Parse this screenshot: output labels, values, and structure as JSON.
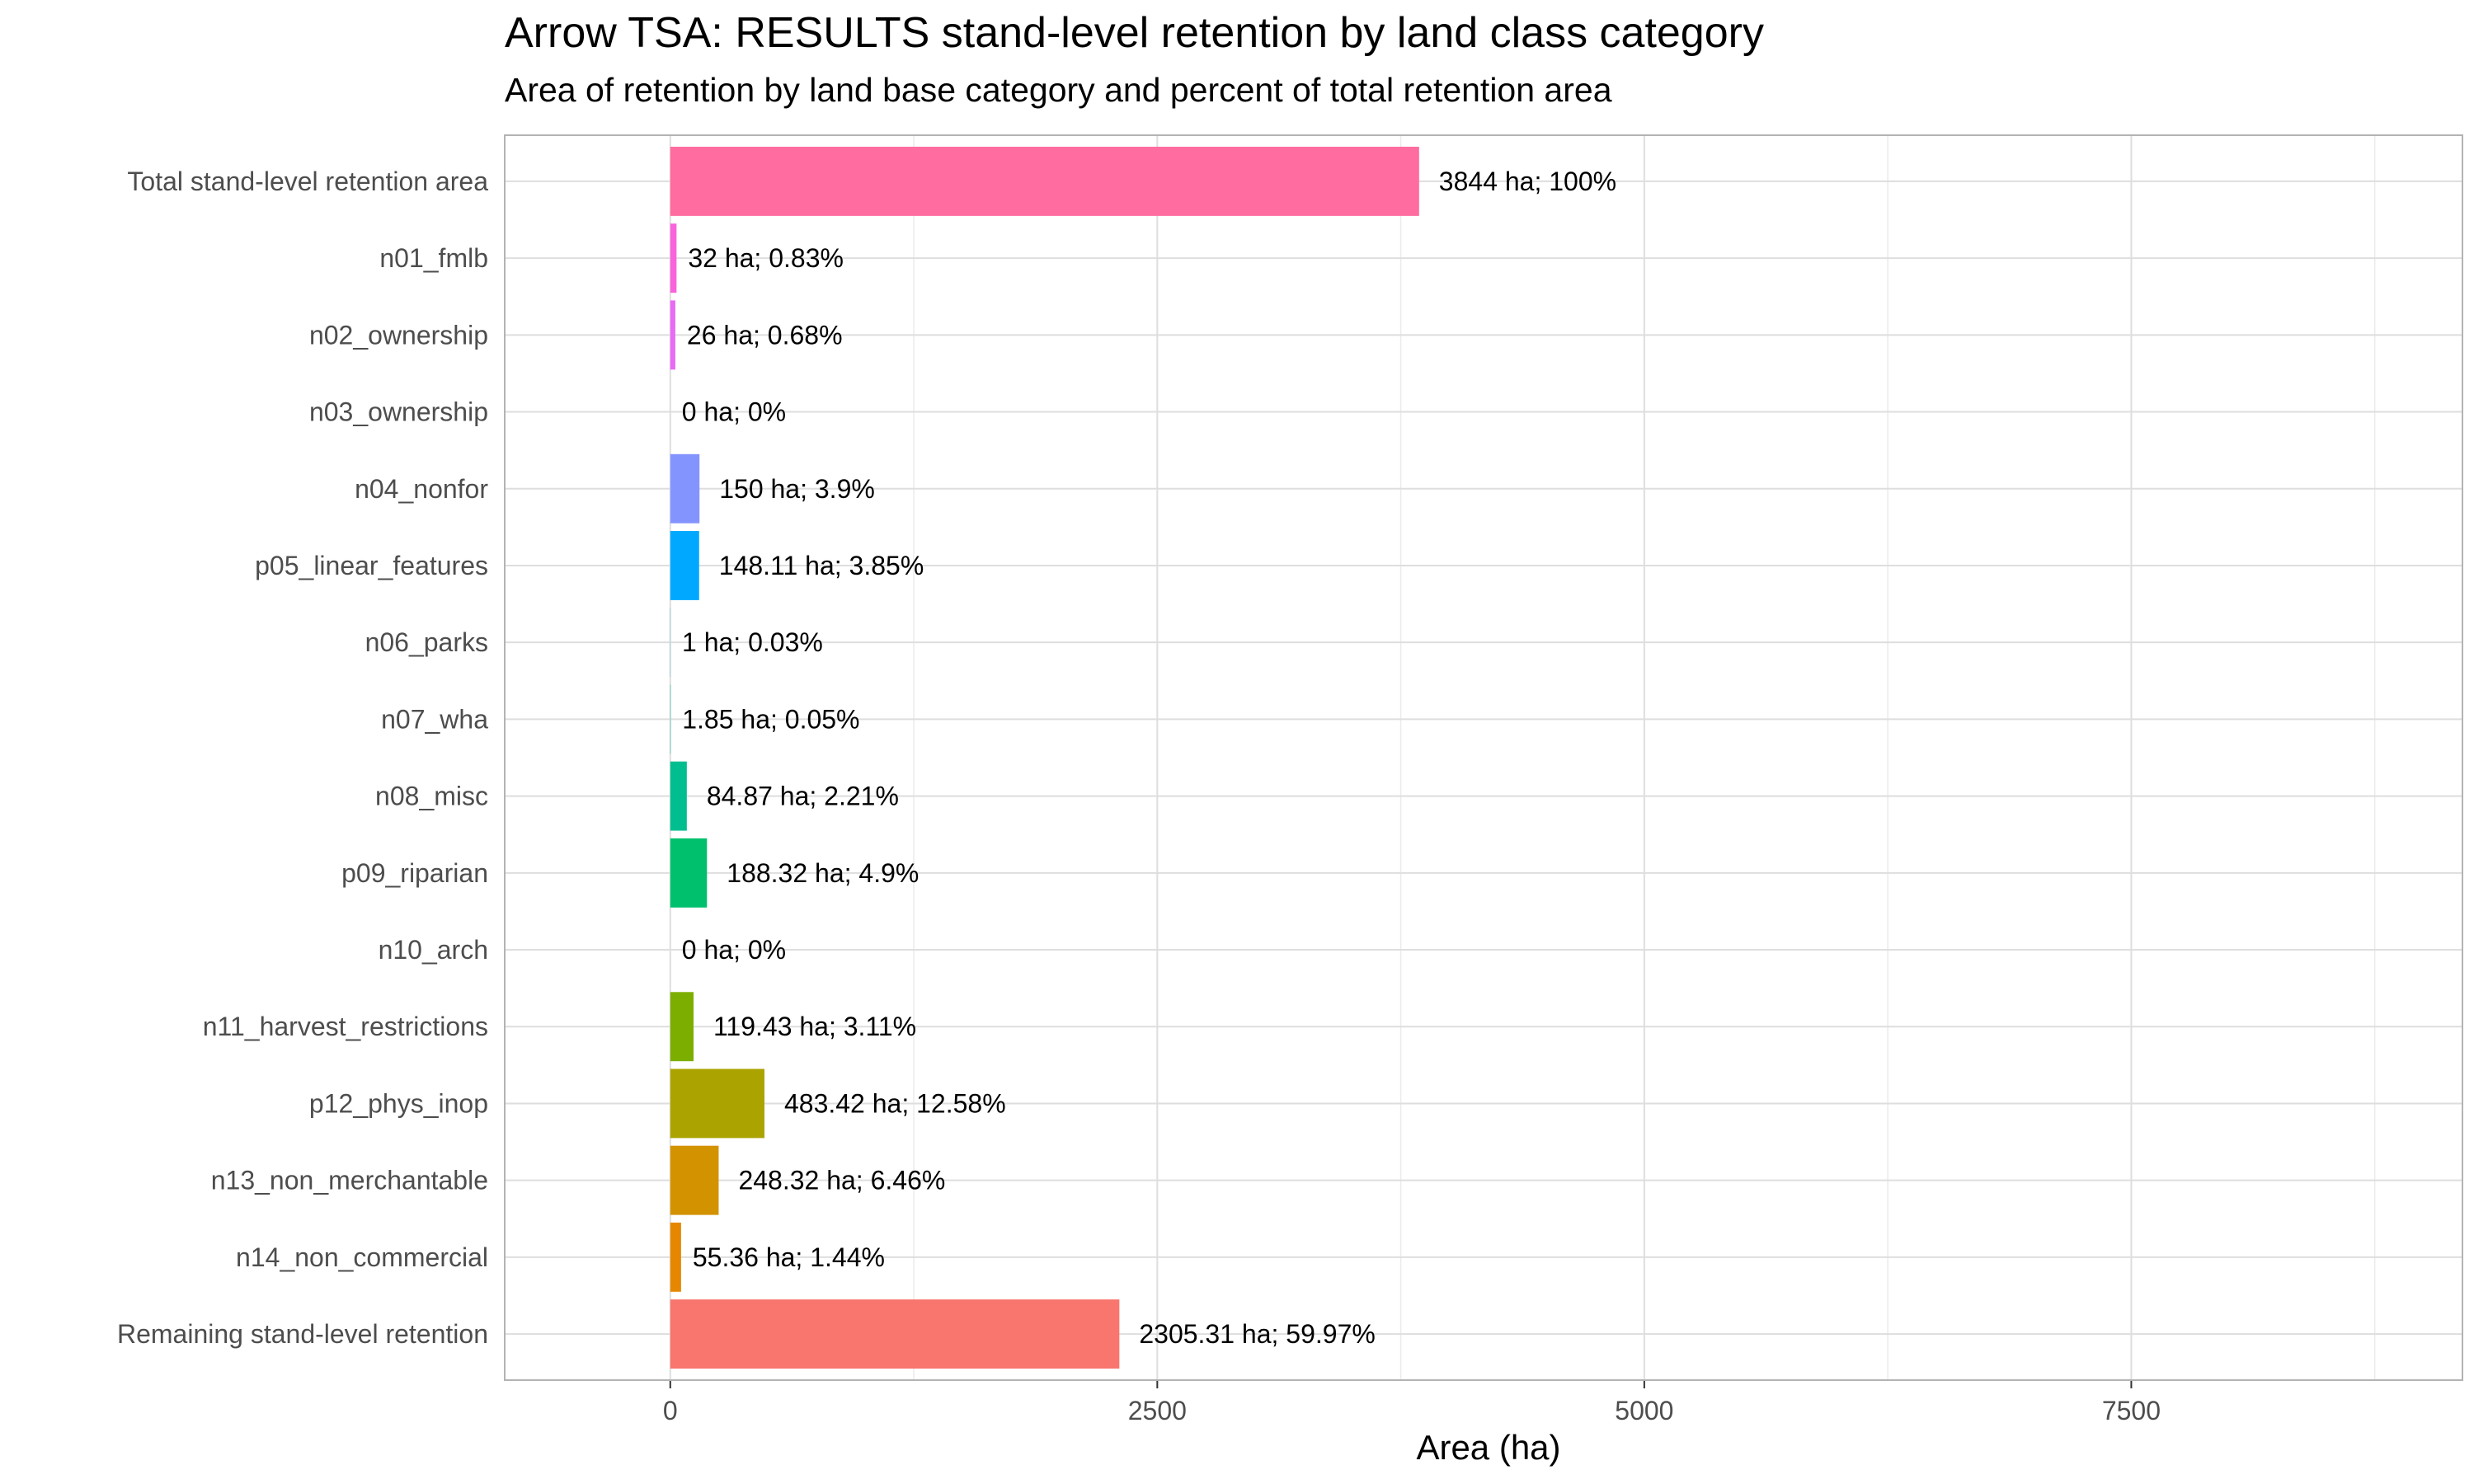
{
  "chart_data": {
    "type": "bar",
    "orientation": "horizontal",
    "title": "Arrow TSA: RESULTS stand-level retention by land class category",
    "subtitle": "Area of retention by land base category and percent of total retention area",
    "xlabel": "Area (ha)",
    "ylabel": "",
    "xlim": [
      -850,
      9200
    ],
    "x_ticks": [
      0,
      2500,
      5000,
      7500
    ],
    "x_tick_labels": [
      "0",
      "2500",
      "5000",
      "7500"
    ],
    "grid": true,
    "legend": "none",
    "categories": [
      "Total stand-level retention area",
      "n01_fmlb",
      "n02_ownership",
      "n03_ownership",
      "n04_nonfor",
      "p05_linear_features",
      "n06_parks",
      "n07_wha",
      "n08_misc",
      "p09_riparian",
      "n10_arch",
      "n11_harvest_restrictions",
      "p12_phys_inop",
      "n13_non_merchantable",
      "n14_non_commercial",
      "Remaining stand-level retention"
    ],
    "values": [
      3844,
      32,
      26,
      0,
      150,
      148.11,
      1,
      1.85,
      84.87,
      188.32,
      0,
      119.43,
      483.42,
      248.32,
      55.36,
      2305.31
    ],
    "labels": [
      "3844 ha; 100%",
      "32 ha; 0.83%",
      "26 ha; 0.68%",
      "0 ha; 0%",
      "150 ha; 3.9%",
      "148.11 ha; 3.85%",
      "1 ha; 0.03%",
      "1.85 ha; 0.05%",
      "84.87 ha; 2.21%",
      "188.32 ha; 4.9%",
      "0 ha; 0%",
      "119.43 ha; 3.11%",
      "483.42 ha; 12.58%",
      "248.32 ha; 6.46%",
      "55.36 ha; 1.44%",
      "2305.31 ha; 59.97%"
    ],
    "colors": [
      "#FF6C9F",
      "#F963DB",
      "#E76BF3",
      "#C77CFF",
      "#8494FF",
      "#00A9FF",
      "#00BCD8",
      "#00C1AA",
      "#00BE8F",
      "#00C06D",
      "#7CAE00",
      "#7CAE00",
      "#ABA300",
      "#D39200",
      "#E58700",
      "#F8766D"
    ]
  }
}
